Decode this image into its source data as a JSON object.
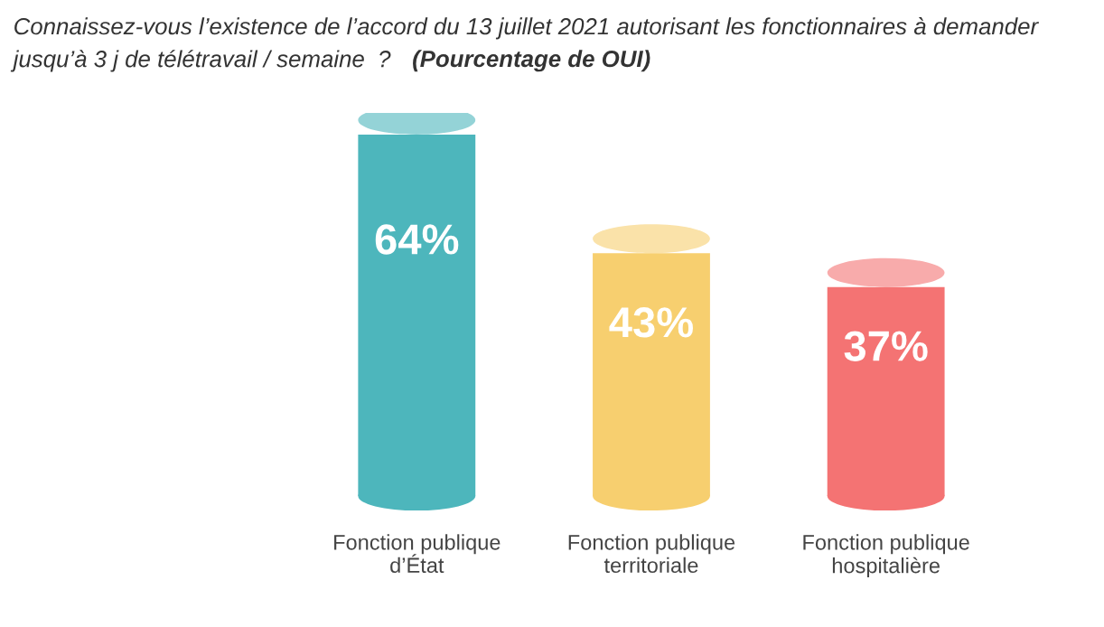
{
  "chart_data": {
    "type": "bar",
    "title": "Connaissez-vous l’existence de l’accord du 13 juillet 2021 autorisant les fonctionnaires à demander jusqu’à 3 j de télétravail / semaine  ?",
    "subtitle": "(Pourcentage de OUI)",
    "categories": [
      "Fonction publique d’État",
      "Fonction publique territoriale",
      "Fonction publique hospitalière"
    ],
    "values": [
      64,
      43,
      37
    ],
    "colors": [
      "#4db6bc",
      "#f7cf6f",
      "#f47373"
    ],
    "value_labels": [
      "64%",
      "43%",
      "37%"
    ],
    "grid": false,
    "legend": false
  }
}
